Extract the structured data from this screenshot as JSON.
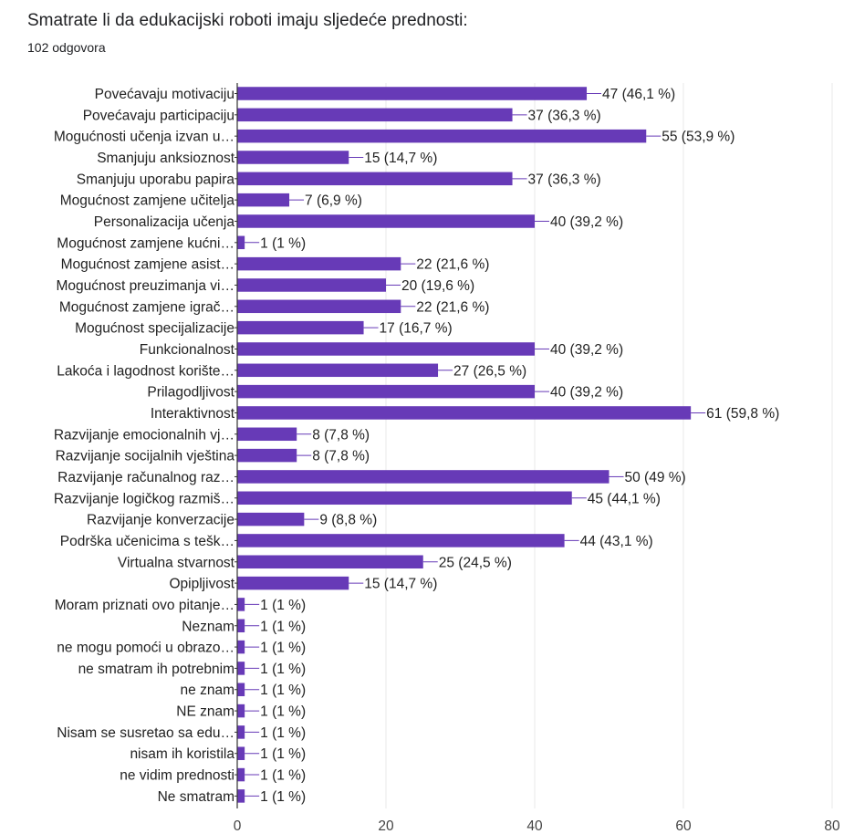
{
  "header": {
    "title": "Smatrate li da edukacijski roboti imaju sljedeće prednosti:",
    "responses": "102 odgovora"
  },
  "colors": {
    "bar": "#673ab7",
    "grid": "#e8e8e8",
    "axis": "#333333",
    "leader": "#673ab7"
  },
  "chart_data": {
    "type": "bar",
    "orientation": "horizontal",
    "categories": [
      "Povećavaju motivaciju",
      "Povećavaju participaciju",
      "Mogućnosti učenja izvan u…",
      "Smanjuju anksioznost",
      "Smanjuju uporabu papira",
      "Mogućnost zamjene učitelja",
      "Personalizacija učenja",
      "Mogućnost zamjene kućni…",
      "Mogućnost zamjene asist…",
      "Mogućnost preuzimanja vi…",
      "Mogućnost zamjene igrač…",
      "Mogućnost specijalizacije",
      "Funkcionalnost",
      "Lakoća i lagodnost korište…",
      "Prilagodljivost",
      "Interaktivnost",
      "Razvijanje emocionalnih vj…",
      "Razvijanje socijalnih vještina",
      "Razvijanje računalnog raz…",
      "Razvijanje logičkog razmiš…",
      "Razvijanje konverzacije",
      "Podrška učenicima s tešk…",
      "Virtualna stvarnost",
      "Opipljivost",
      "Moram priznati ovo pitanje…",
      "Neznam",
      "ne mogu pomoći u obrazo…",
      "ne smatram ih potrebnim",
      "ne znam",
      "NE znam",
      "Nisam se susretao sa edu…",
      "nisam ih koristila",
      "ne vidim prednosti",
      "Ne smatram"
    ],
    "values": [
      47,
      37,
      55,
      15,
      37,
      7,
      40,
      1,
      22,
      20,
      22,
      17,
      40,
      27,
      40,
      61,
      8,
      8,
      50,
      45,
      9,
      44,
      25,
      15,
      1,
      1,
      1,
      1,
      1,
      1,
      1,
      1,
      1,
      1
    ],
    "value_labels": [
      "47 (46,1 %)",
      "37 (36,3 %)",
      "55 (53,9 %)",
      "15 (14,7 %)",
      "37 (36,3 %)",
      "7 (6,9 %)",
      "40 (39,2 %)",
      "1 (1 %)",
      "22 (21,6 %)",
      "20 (19,6 %)",
      "22 (21,6 %)",
      "17 (16,7 %)",
      "40 (39,2 %)",
      "27 (26,5 %)",
      "40 (39,2 %)",
      "61 (59,8 %)",
      "8 (7,8 %)",
      "8 (7,8 %)",
      "50 (49 %)",
      "45 (44,1 %)",
      "9 (8,8 %)",
      "44 (43,1 %)",
      "25 (24,5 %)",
      "15 (14,7 %)",
      "1 (1 %)",
      "1 (1 %)",
      "1 (1 %)",
      "1 (1 %)",
      "1 (1 %)",
      "1 (1 %)",
      "1 (1 %)",
      "1 (1 %)",
      "1 (1 %)",
      "1 (1 %)"
    ],
    "xlim": [
      0,
      80
    ],
    "xticks": [
      0,
      20,
      40,
      60,
      80
    ],
    "xtick_labels": [
      "0",
      "20",
      "40",
      "60",
      "80"
    ],
    "grid": true,
    "legend": "none"
  }
}
